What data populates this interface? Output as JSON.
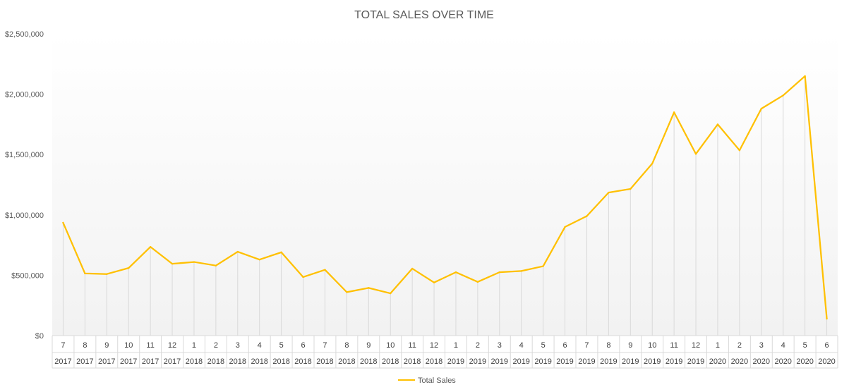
{
  "chart_data": {
    "type": "line",
    "title": "TOTAL SALES OVER TIME",
    "xlabel": "",
    "ylabel": "",
    "ylim": [
      0,
      2500000
    ],
    "yticks": [
      0,
      500000,
      1000000,
      1500000,
      2000000,
      2500000
    ],
    "ytick_labels": [
      "$0",
      "$500,000",
      "$1,000,000",
      "$1,500,000",
      "$2,000,000",
      "$2,500,000"
    ],
    "months": [
      "7",
      "8",
      "9",
      "10",
      "11",
      "12",
      "1",
      "2",
      "3",
      "4",
      "5",
      "6",
      "7",
      "8",
      "9",
      "10",
      "11",
      "12",
      "1",
      "2",
      "3",
      "4",
      "5",
      "6",
      "7",
      "8",
      "9",
      "10",
      "11",
      "12",
      "1",
      "2",
      "3",
      "4",
      "5",
      "6"
    ],
    "years": [
      "2017",
      "2017",
      "2017",
      "2017",
      "2017",
      "2017",
      "2018",
      "2018",
      "2018",
      "2018",
      "2018",
      "2018",
      "2018",
      "2018",
      "2018",
      "2018",
      "2018",
      "2018",
      "2019",
      "2019",
      "2019",
      "2019",
      "2019",
      "2019",
      "2019",
      "2019",
      "2019",
      "2019",
      "2019",
      "2019",
      "2020",
      "2020",
      "2020",
      "2020",
      "2020",
      "2020"
    ],
    "series": [
      {
        "name": "Total Sales",
        "color": "#FFC000",
        "values": [
          935000,
          515000,
          510000,
          560000,
          735000,
          595000,
          610000,
          580000,
          695000,
          630000,
          690000,
          485000,
          545000,
          360000,
          395000,
          350000,
          555000,
          440000,
          525000,
          445000,
          525000,
          535000,
          575000,
          900000,
          990000,
          1185000,
          1215000,
          1425000,
          1850000,
          1505000,
          1750000,
          1535000,
          1880000,
          1990000,
          2150000,
          140000
        ]
      }
    ],
    "grid": "vertical drop lines",
    "legend": "bottom"
  }
}
